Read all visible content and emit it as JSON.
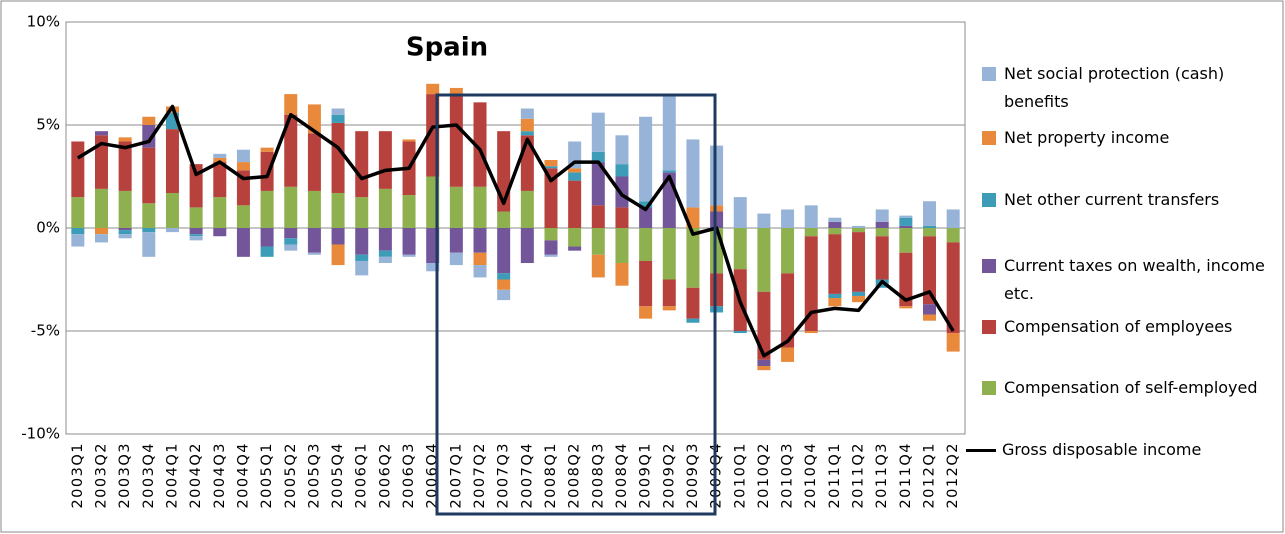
{
  "chart_data": {
    "type": "bar",
    "stacked": true,
    "title": "Spain",
    "categories": [
      "2003Q1",
      "2003Q2",
      "2003Q3",
      "2003Q4",
      "2004Q1",
      "2004Q2",
      "2004Q3",
      "2004Q4",
      "2005Q1",
      "2005Q2",
      "2005Q3",
      "2005Q4",
      "2006Q1",
      "2006Q2",
      "2006Q3",
      "2006Q4",
      "2007Q1",
      "2007Q2",
      "2007Q3",
      "2007Q4",
      "2008Q1",
      "2008Q2",
      "2008Q3",
      "2008Q4",
      "2009Q1",
      "2009Q2",
      "2009Q3",
      "2009Q4",
      "2010Q1",
      "2010Q2",
      "2010Q3",
      "2010Q4",
      "2011Q1",
      "2011Q2",
      "2011Q3",
      "2011Q4",
      "2012Q1",
      "2012Q2"
    ],
    "series": [
      {
        "name": "Compensation of self-employed",
        "color": "#8fb04f",
        "values": [
          1.5,
          1.9,
          1.8,
          1.2,
          1.7,
          1.0,
          1.5,
          1.1,
          1.8,
          2.0,
          1.8,
          1.7,
          1.5,
          1.9,
          1.6,
          2.5,
          2.0,
          2.0,
          0.8,
          1.8,
          -0.6,
          -0.9,
          -1.3,
          -1.7,
          -1.6,
          -2.5,
          -2.9,
          -2.2,
          -2.0,
          -3.1,
          -2.2,
          -0.4,
          -0.3,
          -0.2,
          -0.4,
          -1.2,
          -0.4,
          -0.7
        ]
      },
      {
        "name": "Compensation of employees",
        "color": "#b7413d",
        "values": [
          2.7,
          2.6,
          2.4,
          2.7,
          3.1,
          2.1,
          1.7,
          1.7,
          1.9,
          3.5,
          2.8,
          3.4,
          3.2,
          2.8,
          2.6,
          4.0,
          4.5,
          4.1,
          3.9,
          2.7,
          2.9,
          2.3,
          1.1,
          1.0,
          -2.2,
          -1.3,
          -1.5,
          -1.6,
          -3.0,
          -3.3,
          -3.6,
          -4.6,
          -2.9,
          -2.9,
          -2.1,
          -2.6,
          -3.3,
          -4.4
        ]
      },
      {
        "name": "Current taxes on wealth, income etc.",
        "color": "#73559a",
        "values": [
          0,
          0.2,
          -0.1,
          1.1,
          0,
          -0.3,
          -0.4,
          -1.4,
          -0.9,
          -0.5,
          -1.2,
          -0.8,
          -1.3,
          -1.1,
          -1.3,
          -1.7,
          -1.2,
          -1.2,
          -2.2,
          -1.7,
          -0.7,
          -0.2,
          2.1,
          1.5,
          1.0,
          2.7,
          0,
          0.8,
          0,
          -0.3,
          0,
          0,
          0.3,
          0,
          0.3,
          0.1,
          -0.5,
          0
        ]
      },
      {
        "name": "Net other current transfers",
        "color": "#3d9db8",
        "values": [
          -0.3,
          0,
          -0.2,
          -0.2,
          0.8,
          -0.1,
          0,
          0,
          -0.5,
          -0.3,
          0,
          0.4,
          -0.3,
          -0.3,
          0,
          0,
          0,
          0,
          -0.3,
          0.2,
          0.1,
          0.4,
          0.5,
          0.6,
          0.3,
          0.1,
          -0.2,
          -0.3,
          -0.1,
          0,
          0,
          0,
          -0.2,
          -0.2,
          -0.4,
          0.4,
          0.1,
          0
        ]
      },
      {
        "name": "Net property income",
        "color": "#e8893c",
        "values": [
          0,
          -0.3,
          0.2,
          0.4,
          0.3,
          0,
          0.2,
          0.4,
          0.2,
          1.0,
          1.4,
          -1.0,
          0,
          0,
          0.1,
          0.5,
          0.3,
          -0.6,
          -0.5,
          0.6,
          0.3,
          0.2,
          -1.1,
          -1.1,
          -0.6,
          -0.2,
          1.0,
          0.3,
          0,
          -0.2,
          -0.7,
          -0.1,
          -0.4,
          -0.3,
          0,
          -0.1,
          -0.3,
          -0.9
        ]
      },
      {
        "name": "Net social protection (cash) benefits",
        "color": "#98b3d8",
        "values": [
          -0.6,
          -0.4,
          -0.2,
          -1.2,
          -0.2,
          -0.2,
          0.2,
          0.6,
          0,
          -0.3,
          -0.1,
          0.3,
          -0.7,
          -0.3,
          -0.1,
          -0.4,
          -0.6,
          -0.6,
          -0.5,
          0.5,
          -0.1,
          1.3,
          1.9,
          1.4,
          4.1,
          3.6,
          3.3,
          2.9,
          1.5,
          0.7,
          0.9,
          1.1,
          0.2,
          0.1,
          0.6,
          0.1,
          1.2,
          0.9
        ]
      },
      {
        "name": "Gross disposable income",
        "color": "#000000",
        "type": "line",
        "values": [
          3.4,
          4.1,
          3.9,
          4.2,
          5.9,
          2.6,
          3.2,
          2.4,
          2.5,
          5.5,
          4.7,
          3.9,
          2.4,
          2.8,
          2.9,
          4.9,
          5.0,
          3.8,
          1.2,
          4.3,
          2.3,
          3.2,
          3.2,
          1.6,
          0.9,
          2.5,
          -0.3,
          0,
          -3.6,
          -6.2,
          -5.5,
          -4.1,
          -3.9,
          -4.0,
          -2.6,
          -3.5,
          -3.1,
          -5.0
        ]
      }
    ],
    "ylim": [
      -10,
      10
    ],
    "yticks": [
      {
        "value": 10,
        "label": "10%"
      },
      {
        "value": 5,
        "label": "5%"
      },
      {
        "value": 0,
        "label": "0%"
      },
      {
        "value": -5,
        "label": "-5%"
      },
      {
        "value": -10,
        "label": "-10%"
      }
    ],
    "grid": true
  }
}
